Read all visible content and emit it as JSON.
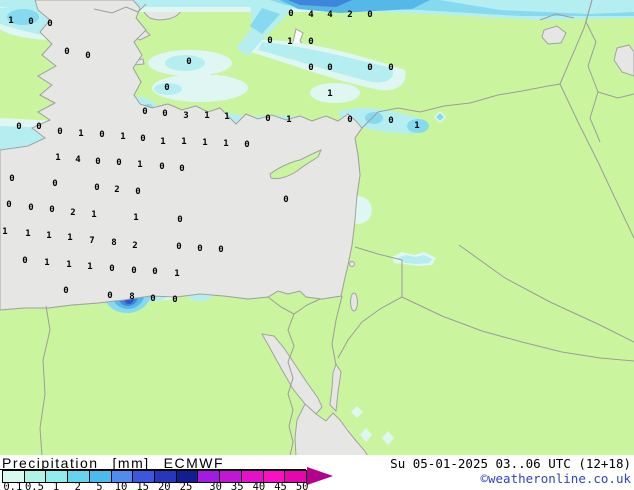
{
  "header": {
    "title": "Precipitation",
    "unit": "[mm]",
    "model": "ECMWF"
  },
  "footer": {
    "datetime": "Su 05-01-2025 03..06 UTC (12+18)",
    "copyright": "©weatheronline.co.uk",
    "copyright_color": "#2e44cc"
  },
  "legend": {
    "values": [
      "0.1",
      "0.5",
      "1",
      "2",
      "5",
      "10",
      "15",
      "20",
      "25",
      "30",
      "35",
      "40",
      "45",
      "50"
    ],
    "cell_colors": [
      "#d8f8f0",
      "#aef2e8",
      "#8feeec",
      "#64d5ee",
      "#49bbec",
      "#4f8cee",
      "#3a57dd",
      "#2737bd",
      "#121d90",
      "#a519e4",
      "#c414d6",
      "#e410cc",
      "#fb0fc4",
      "#e606b0"
    ],
    "arrow_color": "#b4008c"
  },
  "map": {
    "colors": {
      "land": "#caf59e",
      "sea": "#e6e6e4",
      "coastline": "#a2a2a2",
      "border": "#9c9c9c",
      "precip_levels": [
        "#dff6f3",
        "#b5eef0",
        "#86daf0",
        "#55b8e8",
        "#3f86da",
        "#2f55cc"
      ]
    },
    "values": [
      [
        11,
        22,
        "1"
      ],
      [
        31,
        23,
        "0"
      ],
      [
        50,
        25,
        "0"
      ],
      [
        67,
        53,
        "0"
      ],
      [
        88,
        57,
        "0"
      ],
      [
        189,
        63,
        "0"
      ],
      [
        167,
        89,
        "0"
      ],
      [
        291,
        15,
        "0"
      ],
      [
        311,
        16,
        "4"
      ],
      [
        330,
        16,
        "4"
      ],
      [
        350,
        16,
        "2"
      ],
      [
        370,
        16,
        "0"
      ],
      [
        270,
        42,
        "0"
      ],
      [
        290,
        43,
        "1"
      ],
      [
        311,
        43,
        "0"
      ],
      [
        311,
        69,
        "0"
      ],
      [
        330,
        69,
        "0"
      ],
      [
        370,
        69,
        "0"
      ],
      [
        391,
        69,
        "0"
      ],
      [
        330,
        95,
        "1"
      ],
      [
        145,
        113,
        "0"
      ],
      [
        165,
        115,
        "0"
      ],
      [
        186,
        117,
        "3"
      ],
      [
        207,
        117,
        "1"
      ],
      [
        227,
        118,
        "1"
      ],
      [
        268,
        120,
        "0"
      ],
      [
        289,
        121,
        "1"
      ],
      [
        350,
        121,
        "0"
      ],
      [
        391,
        122,
        "0"
      ],
      [
        417,
        127,
        "1"
      ],
      [
        19,
        128,
        "0"
      ],
      [
        39,
        128,
        "0"
      ],
      [
        60,
        133,
        "0"
      ],
      [
        81,
        135,
        "1"
      ],
      [
        102,
        136,
        "0"
      ],
      [
        123,
        138,
        "1"
      ],
      [
        143,
        140,
        "0"
      ],
      [
        163,
        143,
        "1"
      ],
      [
        184,
        143,
        "1"
      ],
      [
        205,
        144,
        "1"
      ],
      [
        226,
        145,
        "1"
      ],
      [
        247,
        146,
        "0"
      ],
      [
        58,
        159,
        "1"
      ],
      [
        78,
        161,
        "4"
      ],
      [
        98,
        163,
        "0"
      ],
      [
        119,
        164,
        "0"
      ],
      [
        140,
        166,
        "1"
      ],
      [
        162,
        168,
        "0"
      ],
      [
        182,
        170,
        "0"
      ],
      [
        12,
        180,
        "0"
      ],
      [
        55,
        185,
        "0"
      ],
      [
        97,
        189,
        "0"
      ],
      [
        117,
        191,
        "2"
      ],
      [
        138,
        193,
        "0"
      ],
      [
        286,
        201,
        "0"
      ],
      [
        9,
        206,
        "0"
      ],
      [
        31,
        209,
        "0"
      ],
      [
        52,
        211,
        "0"
      ],
      [
        73,
        214,
        "2"
      ],
      [
        94,
        216,
        "1"
      ],
      [
        136,
        219,
        "1"
      ],
      [
        180,
        221,
        "0"
      ],
      [
        5,
        233,
        "1"
      ],
      [
        28,
        235,
        "1"
      ],
      [
        49,
        237,
        "1"
      ],
      [
        70,
        239,
        "1"
      ],
      [
        92,
        242,
        "7"
      ],
      [
        114,
        244,
        "8"
      ],
      [
        135,
        247,
        "2"
      ],
      [
        179,
        248,
        "0"
      ],
      [
        200,
        250,
        "0"
      ],
      [
        221,
        251,
        "0"
      ],
      [
        25,
        262,
        "0"
      ],
      [
        47,
        264,
        "1"
      ],
      [
        69,
        266,
        "1"
      ],
      [
        90,
        268,
        "1"
      ],
      [
        112,
        270,
        "0"
      ],
      [
        134,
        272,
        "0"
      ],
      [
        155,
        273,
        "0"
      ],
      [
        177,
        275,
        "1"
      ],
      [
        66,
        292,
        "0"
      ],
      [
        110,
        297,
        "0"
      ],
      [
        132,
        298,
        "8"
      ],
      [
        153,
        300,
        "0"
      ],
      [
        175,
        301,
        "0"
      ]
    ]
  }
}
